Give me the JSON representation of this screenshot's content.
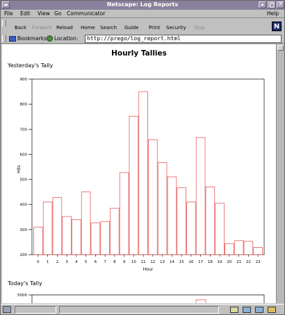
{
  "window": {
    "title": "Netscape: Log Reports"
  },
  "menu": {
    "items": [
      "File",
      "Edit",
      "View",
      "Go",
      "Communicator"
    ],
    "help": "Help"
  },
  "toolbar": {
    "buttons": [
      {
        "label": "Back",
        "enabled": true
      },
      {
        "label": "Forward",
        "enabled": false
      },
      {
        "label": "Reload",
        "enabled": true
      },
      {
        "label": "Home",
        "enabled": true
      },
      {
        "label": "Search",
        "enabled": true
      },
      {
        "label": "Guide",
        "enabled": true
      },
      {
        "label": "Print",
        "enabled": true
      },
      {
        "label": "Security",
        "enabled": true
      },
      {
        "label": "Stop",
        "enabled": false
      }
    ],
    "logo_letter": "N"
  },
  "location": {
    "bookmarks_label": "Bookmarks",
    "location_label": "Location:",
    "url": "http://prego/log_report.html"
  },
  "page": {
    "heading": "Hourly Tallies",
    "section1": "Yesterday's Tally",
    "section2": "Today's Tally"
  },
  "colors": {
    "bar_stroke": "#e85a5a",
    "titlebar": "#8a7f9c",
    "chrome": "#c0c0c0"
  },
  "chart_data": [
    {
      "type": "bar",
      "categories": [
        "0",
        "1",
        "2",
        "3",
        "4",
        "5",
        "6",
        "7",
        "8",
        "9",
        "10",
        "11",
        "12",
        "13",
        "14",
        "15",
        "16",
        "17",
        "18",
        "19",
        "20",
        "21",
        "22",
        "23"
      ],
      "values": [
        310,
        410,
        428,
        352,
        340,
        450,
        327,
        332,
        385,
        527,
        752,
        850,
        658,
        567,
        510,
        467,
        410,
        667,
        470,
        405,
        244,
        256,
        253,
        229
      ],
      "title": "",
      "xlabel": "Hour",
      "ylabel": "Hits",
      "ylim": [
        200,
        900
      ],
      "yticks": [
        200,
        300,
        400,
        500,
        600,
        700,
        800,
        900
      ],
      "grid": false
    },
    {
      "type": "bar",
      "visible_ytick": "5000",
      "ylabel": "",
      "xlabel": ""
    }
  ]
}
